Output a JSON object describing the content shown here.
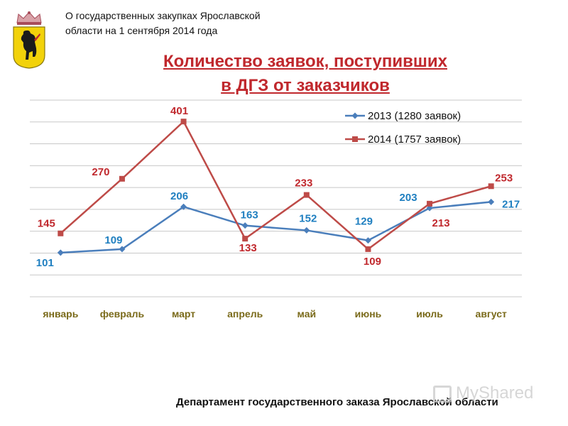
{
  "header": {
    "line1": "О государственных закупках Ярославской",
    "line2": "области на 1 сентября 2014 года"
  },
  "emblem": {
    "icon": "yaroslavl-coat-of-arms-bear-icon"
  },
  "chart_data": {
    "type": "line",
    "title_line1": "Количество заявок, поступивших",
    "title_line2": "в ДГЗ от заказчиков",
    "categories": [
      "январь",
      "февраль",
      "март",
      "апрель",
      "май",
      "июнь",
      "июль",
      "август"
    ],
    "series": [
      {
        "name": "2013 (1280 заявок)",
        "color": "#4a7ebb",
        "label_color": "#1f7fc0",
        "marker": "diamond",
        "values": [
          101,
          109,
          206,
          163,
          152,
          129,
          203,
          217
        ]
      },
      {
        "name": "2014 (1757 заявок)",
        "color": "#be4b48",
        "label_color": "#c0282d",
        "marker": "square",
        "values": [
          145,
          270,
          401,
          133,
          233,
          109,
          213,
          253
        ]
      }
    ],
    "ylim": [
      0,
      450
    ],
    "grid": true,
    "legend": "top-right",
    "xlabel": "",
    "ylabel": "",
    "tick_label_color": "#7a6a1a"
  },
  "footer": "Департамент государственного заказа Ярославской области",
  "watermark": "MyShared"
}
